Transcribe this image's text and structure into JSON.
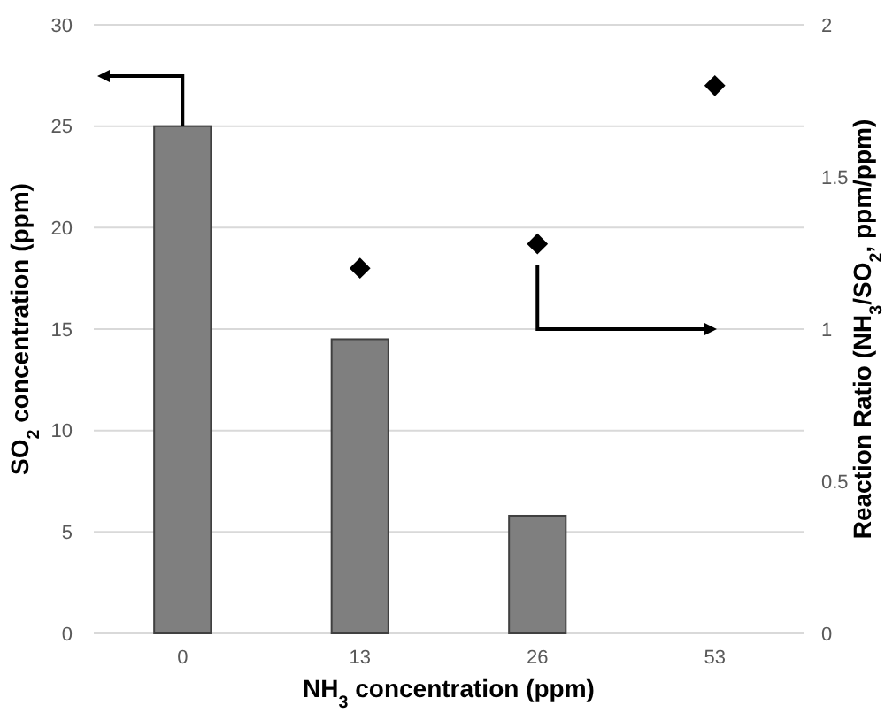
{
  "chart_data": {
    "type": "bar",
    "xlabel": "NH$_{3}$ concentration  (ppm)",
    "ylabel": "SO$_{2}$ concentration  (ppm)",
    "y2label": "Reaction Ratio (NH$_{3}$/SO$_{2}$, ppm/ppm)",
    "categories": [
      "0",
      "13",
      "26",
      "53"
    ],
    "series": [
      {
        "color": "#7f7f7f",
        "values": [
          25,
          14.5,
          5.8,
          null
        ]
      },
      {
        "type": "scatter",
        "axis": "y2",
        "color": "#000000",
        "marker": "diamond",
        "values": [
          null,
          1.2,
          1.28,
          1.8
        ]
      }
    ],
    "ylim": [
      0,
      30
    ],
    "yticks": [
      0,
      5,
      10,
      15,
      20,
      25,
      30
    ],
    "y2lim": [
      0,
      2
    ],
    "y2ticks": [
      0,
      0.5,
      1,
      1.5,
      2
    ],
    "grid": "y"
  }
}
